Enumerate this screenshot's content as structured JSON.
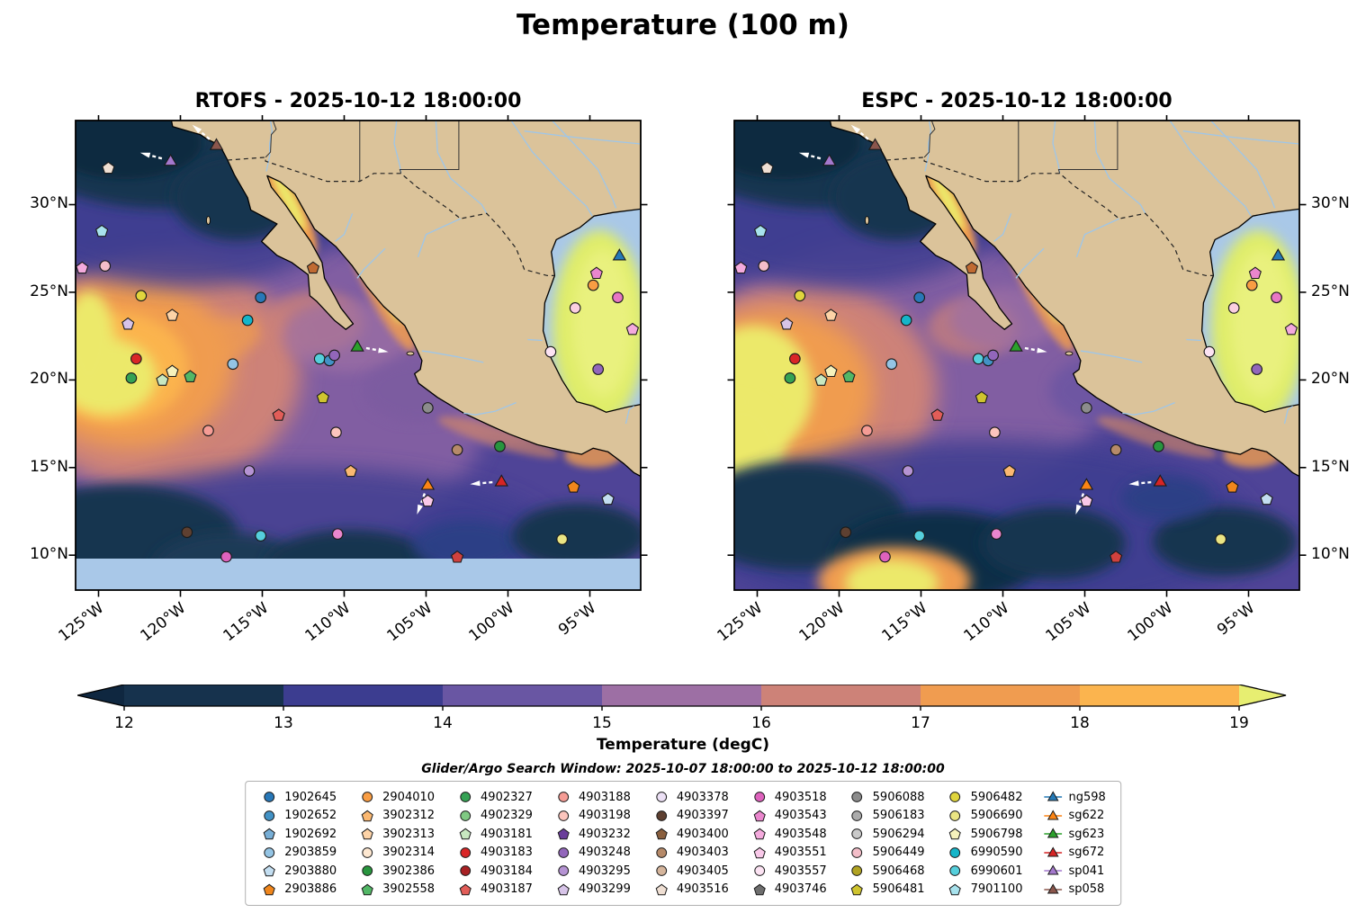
{
  "figure": {
    "title": "Temperature (100 m)",
    "colorbar_label": "Temperature (degC)",
    "search_window": "Glider/Argo Search Window: 2025-10-07 18:00:00 to 2025-10-12 18:00:00"
  },
  "panels": [
    {
      "title": "RTOFS - 2025-10-12 18:00:00"
    },
    {
      "title": "ESPC - 2025-10-12 18:00:00"
    }
  ],
  "axes": {
    "lon_range": [
      -126.4,
      -91.9
    ],
    "lat_range": [
      8.0,
      34.8
    ],
    "lon_ticks": [
      {
        "label": "125°W",
        "lon": -125
      },
      {
        "label": "120°W",
        "lon": -120
      },
      {
        "label": "115°W",
        "lon": -115
      },
      {
        "label": "110°W",
        "lon": -110
      },
      {
        "label": "105°W",
        "lon": -105
      },
      {
        "label": "100°W",
        "lon": -100
      },
      {
        "label": "95°W",
        "lon": -95
      }
    ],
    "lat_ticks": [
      {
        "label": "30°N",
        "lat": 30
      },
      {
        "label": "25°N",
        "lat": 25
      },
      {
        "label": "20°N",
        "lat": 20
      },
      {
        "label": "15°N",
        "lat": 15
      },
      {
        "label": "10°N",
        "lat": 10
      }
    ]
  },
  "colorbar": {
    "ticks": [
      "12",
      "13",
      "14",
      "15",
      "16",
      "17",
      "18",
      "19"
    ],
    "segment_colors": [
      "#16324d",
      "#3c3d90",
      "#6956a3",
      "#9d6fa4",
      "#cd8278",
      "#f09c50",
      "#fbb44e"
    ],
    "under_color": "#0f2740",
    "over_color": "#e7ee71"
  },
  "map_colors": {
    "land": "#dbc39a",
    "shallow_no_data": "#a9c8e8",
    "ocean_base": "#4f4497",
    "coastline": "#000000",
    "river": "#9fc6e8"
  },
  "legend": {
    "entries": [
      {
        "id": "1902645",
        "shape": "circle",
        "color": "#2878b8"
      },
      {
        "id": "1902652",
        "shape": "circle",
        "color": "#4292c6"
      },
      {
        "id": "1902692",
        "shape": "pentagon",
        "color": "#77aed6"
      },
      {
        "id": "2903859",
        "shape": "circle",
        "color": "#94c4e4"
      },
      {
        "id": "2903880",
        "shape": "pentagon",
        "color": "#c3def1"
      },
      {
        "id": "2903886",
        "shape": "pentagon",
        "color": "#f0861c"
      },
      {
        "id": "2904010",
        "shape": "circle",
        "color": "#f99d43"
      },
      {
        "id": "3902312",
        "shape": "pentagon",
        "color": "#fbb871"
      },
      {
        "id": "3902313",
        "shape": "pentagon",
        "color": "#fdd3a7"
      },
      {
        "id": "3902314",
        "shape": "circle",
        "color": "#fee8d1"
      },
      {
        "id": "3902386",
        "shape": "circle",
        "color": "#28953e"
      },
      {
        "id": "3902558",
        "shape": "pentagon",
        "color": "#52b766"
      },
      {
        "id": "4902327",
        "shape": "circle",
        "color": "#35a254"
      },
      {
        "id": "4902329",
        "shape": "circle",
        "color": "#80c983"
      },
      {
        "id": "4903181",
        "shape": "pentagon",
        "color": "#c8e8c0"
      },
      {
        "id": "4903183",
        "shape": "circle",
        "color": "#d92627"
      },
      {
        "id": "4903184",
        "shape": "circle",
        "color": "#a82023"
      },
      {
        "id": "4903187",
        "shape": "pentagon",
        "color": "#e25d58"
      },
      {
        "id": "4903188",
        "shape": "circle",
        "color": "#f59c95"
      },
      {
        "id": "4903198",
        "shape": "circle",
        "color": "#fcc5bd"
      },
      {
        "id": "4903232",
        "shape": "pentagon",
        "color": "#6a3d9a"
      },
      {
        "id": "4903248",
        "shape": "circle",
        "color": "#9266bb"
      },
      {
        "id": "4903295",
        "shape": "circle",
        "color": "#b593d3"
      },
      {
        "id": "4903299",
        "shape": "pentagon",
        "color": "#d7c4e8"
      },
      {
        "id": "4903378",
        "shape": "circle",
        "color": "#ece0f5"
      },
      {
        "id": "4903397",
        "shape": "circle",
        "color": "#5e4031"
      },
      {
        "id": "4903400",
        "shape": "pentagon",
        "color": "#8a5f3e"
      },
      {
        "id": "4903403",
        "shape": "circle",
        "color": "#b68a69"
      },
      {
        "id": "4903405",
        "shape": "circle",
        "color": "#d5b59c"
      },
      {
        "id": "4903516",
        "shape": "pentagon",
        "color": "#efdfd3"
      },
      {
        "id": "4903518",
        "shape": "circle",
        "color": "#de62bd"
      },
      {
        "id": "4903543",
        "shape": "pentagon",
        "color": "#ea86cd"
      },
      {
        "id": "4903548",
        "shape": "pentagon",
        "color": "#f4aadd"
      },
      {
        "id": "4903551",
        "shape": "pentagon",
        "color": "#f9c9e9"
      },
      {
        "id": "4903557",
        "shape": "circle",
        "color": "#fce3f3"
      },
      {
        "id": "4903746",
        "shape": "pentagon",
        "color": "#6e6e6e"
      },
      {
        "id": "5906088",
        "shape": "circle",
        "color": "#8c8c8c"
      },
      {
        "id": "5906183",
        "shape": "circle",
        "color": "#ababab"
      },
      {
        "id": "5906294",
        "shape": "circle",
        "color": "#c9c9c9"
      },
      {
        "id": "5906449",
        "shape": "circle",
        "color": "#f4bec9"
      },
      {
        "id": "5906468",
        "shape": "circle",
        "color": "#b1a322"
      },
      {
        "id": "5906481",
        "shape": "pentagon",
        "color": "#cfc42e"
      },
      {
        "id": "5906482",
        "shape": "circle",
        "color": "#e0d53d"
      },
      {
        "id": "5906690",
        "shape": "circle",
        "color": "#ebe583"
      },
      {
        "id": "5906798",
        "shape": "pentagon",
        "color": "#f6f2bc"
      },
      {
        "id": "6990590",
        "shape": "circle",
        "color": "#14b5c9"
      },
      {
        "id": "6990601",
        "shape": "circle",
        "color": "#55cfdc"
      },
      {
        "id": "7901100",
        "shape": "pentagon",
        "color": "#a7e2ed"
      },
      {
        "id": "ng598",
        "shape": "glider",
        "color": "#2479b6"
      },
      {
        "id": "sg622",
        "shape": "glider",
        "color": "#fb8414"
      },
      {
        "id": "sg623",
        "shape": "glider",
        "color": "#2ba02b"
      },
      {
        "id": "sg672",
        "shape": "glider",
        "color": "#d62425"
      },
      {
        "id": "sp041",
        "shape": "glider",
        "color": "#a478cd"
      },
      {
        "id": "sp058",
        "shape": "glider",
        "color": "#8b564c"
      }
    ]
  },
  "map_markers": [
    {
      "shape": "pentagon",
      "color": "#efdfd3",
      "lon": -124.4,
      "lat": 32.1
    },
    {
      "shape": "triangle",
      "color": "#a478cd",
      "lon": -120.6,
      "lat": 32.5,
      "glider": "sp041",
      "arrow": 165
    },
    {
      "shape": "triangle",
      "color": "#8b564c",
      "lon": -117.8,
      "lat": 33.4,
      "glider": "sp058",
      "arrow": 140
    },
    {
      "shape": "pentagon",
      "color": "#a7e2ed",
      "lon": -124.8,
      "lat": 28.5
    },
    {
      "shape": "pentagon",
      "color": "#f4aadd",
      "lon": -126.0,
      "lat": 26.4
    },
    {
      "shape": "circle",
      "color": "#f4bec9",
      "lon": -124.6,
      "lat": 26.5
    },
    {
      "shape": "circle",
      "color": "#e0d53d",
      "lon": -122.4,
      "lat": 24.8
    },
    {
      "shape": "pentagon",
      "color": "#d7c4e8",
      "lon": -123.2,
      "lat": 23.2
    },
    {
      "shape": "pentagon",
      "color": "#fdd3a7",
      "lon": -120.5,
      "lat": 23.7
    },
    {
      "shape": "circle",
      "color": "#2878b8",
      "lon": -115.1,
      "lat": 24.7
    },
    {
      "shape": "circle",
      "color": "#14b5c9",
      "lon": -115.9,
      "lat": 23.4
    },
    {
      "shape": "pentagon",
      "color": "#c06a32",
      "lon": -111.9,
      "lat": 26.4
    },
    {
      "shape": "circle",
      "color": "#d92627",
      "lon": -122.7,
      "lat": 21.2
    },
    {
      "shape": "circle",
      "color": "#35a254",
      "lon": -123.0,
      "lat": 20.1
    },
    {
      "shape": "pentagon",
      "color": "#c8e8c0",
      "lon": -121.1,
      "lat": 20.0
    },
    {
      "shape": "pentagon",
      "color": "#f6f2bc",
      "lon": -120.5,
      "lat": 20.5
    },
    {
      "shape": "pentagon",
      "color": "#52b766",
      "lon": -119.4,
      "lat": 20.2
    },
    {
      "shape": "circle",
      "color": "#94c4e4",
      "lon": -116.8,
      "lat": 20.9
    },
    {
      "shape": "circle",
      "color": "#55cfdc",
      "lon": -111.5,
      "lat": 21.2
    },
    {
      "shape": "circle",
      "color": "#4292c6",
      "lon": -110.9,
      "lat": 21.1
    },
    {
      "shape": "circle",
      "color": "#9266bb",
      "lon": -110.6,
      "lat": 21.4
    },
    {
      "shape": "triangle",
      "color": "#2ba02b",
      "lon": -109.2,
      "lat": 21.9,
      "glider": "sg623",
      "arrow": -10
    },
    {
      "shape": "pentagon",
      "color": "#cfc42e",
      "lon": -111.3,
      "lat": 19.0
    },
    {
      "shape": "circle",
      "color": "#fcc5bd",
      "lon": -110.5,
      "lat": 17.0
    },
    {
      "shape": "circle",
      "color": "#f59c95",
      "lon": -118.3,
      "lat": 17.1
    },
    {
      "shape": "pentagon",
      "color": "#e25d58",
      "lon": -114.0,
      "lat": 18.0
    },
    {
      "shape": "circle",
      "color": "#8c8c8c",
      "lon": -104.9,
      "lat": 18.4
    },
    {
      "shape": "circle",
      "color": "#b593d3",
      "lon": -115.8,
      "lat": 14.8
    },
    {
      "shape": "pentagon",
      "color": "#fbb871",
      "lon": -109.6,
      "lat": 14.8
    },
    {
      "shape": "circle",
      "color": "#b68a69",
      "lon": -103.1,
      "lat": 16.0
    },
    {
      "shape": "circle",
      "color": "#28953e",
      "lon": -100.5,
      "lat": 16.2
    },
    {
      "shape": "triangle",
      "color": "#fb8414",
      "lon": -104.9,
      "lat": 14.0,
      "glider": "sg622",
      "arrow": 250
    },
    {
      "shape": "pentagon",
      "color": "#f9c9e9",
      "lon": -104.9,
      "lat": 13.1
    },
    {
      "shape": "triangle",
      "color": "#d62425",
      "lon": -100.4,
      "lat": 14.2,
      "glider": "sg672",
      "arrow": 185
    },
    {
      "shape": "pentagon",
      "color": "#f0861c",
      "lon": -96.0,
      "lat": 13.9
    },
    {
      "shape": "pentagon",
      "color": "#c3def1",
      "lon": -93.9,
      "lat": 13.2
    },
    {
      "shape": "circle",
      "color": "#5e4031",
      "lon": -119.6,
      "lat": 11.3
    },
    {
      "shape": "circle",
      "color": "#55cfdc",
      "lon": -115.1,
      "lat": 11.1
    },
    {
      "shape": "circle",
      "color": "#ea86cd",
      "lon": -110.4,
      "lat": 11.2
    },
    {
      "shape": "circle",
      "color": "#de62bd",
      "lon": -117.2,
      "lat": 9.9
    },
    {
      "shape": "pentagon",
      "color": "#d0413e",
      "lon": -103.1,
      "lat": 9.9
    },
    {
      "shape": "circle",
      "color": "#ebe583",
      "lon": -96.7,
      "lat": 10.9
    },
    {
      "shape": "triangle",
      "color": "#2479b6",
      "lon": -93.2,
      "lat": 27.1,
      "glider": "ng598"
    },
    {
      "shape": "pentagon",
      "color": "#ea86cd",
      "lon": -94.6,
      "lat": 26.1
    },
    {
      "shape": "circle",
      "color": "#f99d43",
      "lon": -94.8,
      "lat": 25.4
    },
    {
      "shape": "circle",
      "color": "#e877c4",
      "lon": -93.3,
      "lat": 24.7
    },
    {
      "shape": "circle",
      "color": "#fbcfe0",
      "lon": -95.9,
      "lat": 24.1
    },
    {
      "shape": "circle",
      "color": "#fce3f3",
      "lon": -97.4,
      "lat": 21.6
    },
    {
      "shape": "circle",
      "color": "#9266bb",
      "lon": -94.5,
      "lat": 20.6
    },
    {
      "shape": "pentagon",
      "color": "#f4aadd",
      "lon": -92.4,
      "lat": 22.9
    }
  ],
  "chart_data": [
    {
      "type": "heatmap",
      "title": "RTOFS - 2025-10-12 18:00:00",
      "variable": "Temperature (degC)",
      "depth_m": 100,
      "valid_time": "2025-10-12 18:00:00",
      "lon_range": [
        -126.4,
        -91.9
      ],
      "lat_range": [
        8.0,
        34.8
      ],
      "color_range": [
        12,
        19
      ],
      "colorbar_ticks": [
        12,
        13,
        14,
        15,
        16,
        17,
        18,
        19
      ],
      "features": "Cold (<12.5 degC) water in the far northwest and along outer Baja California; warm (>19 degC) pool centered near 21N 124W reaching the west edge; warm tongue inside the upper Gulf of California and along the Sinaloa coast; warm (>18.5 degC) pool filling the deep Gulf of Mexico with a light-blue shelf rim; light-blue no-data band south of 10N; overlaid Argo float and glider position markers."
    },
    {
      "type": "heatmap",
      "title": "ESPC - 2025-10-12 18:00:00",
      "variable": "Temperature (degC)",
      "depth_m": 100,
      "valid_time": "2025-10-12 18:00:00",
      "lon_range": [
        -126.4,
        -91.9
      ],
      "lat_range": [
        8.0,
        34.8
      ],
      "color_range": [
        12,
        19
      ],
      "colorbar_ticks": [
        12,
        13,
        14,
        15,
        16,
        17,
        18,
        19
      ],
      "features": "Same layout as RTOFS with broader cold (<12.5 degC) patches across the south between 8N and 13N, a warm (>19 degC) spot near 9N 117W at the bottom edge, warm pool west of Baja California reaching the west edge, warm upper Gulf of California, and the same warm Gulf of Mexico pool; same Argo/glider markers."
    }
  ]
}
